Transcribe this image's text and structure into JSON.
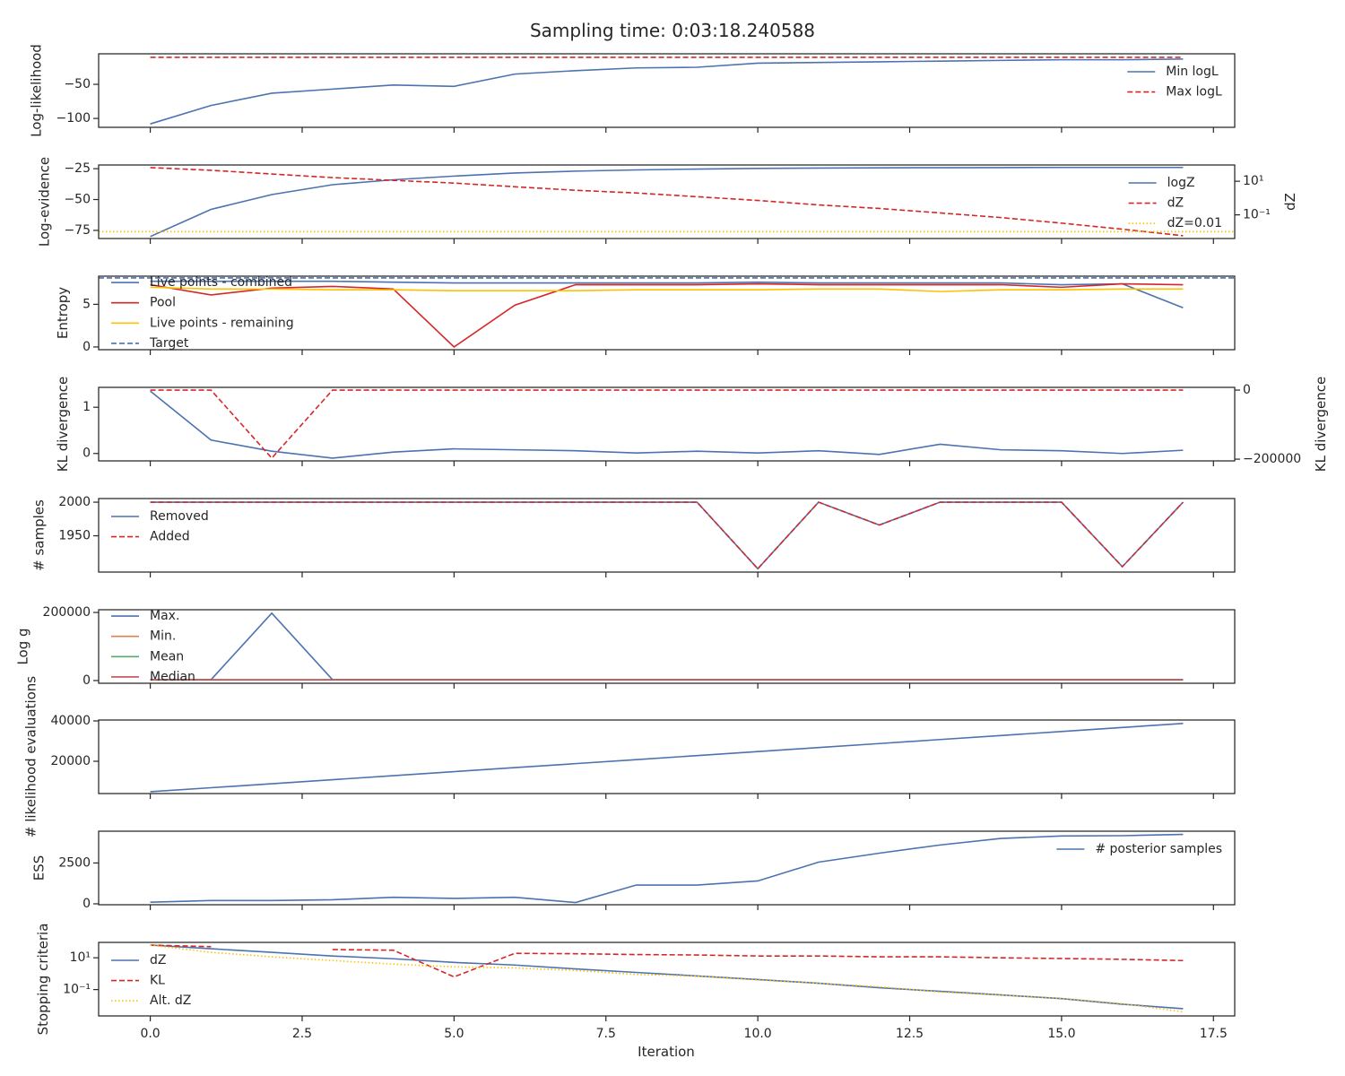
{
  "figure": {
    "title": "Sampling time: 0:03:18.240588",
    "xlabel": "Iteration",
    "x": [
      0,
      1,
      2,
      3,
      4,
      5,
      6,
      7,
      8,
      9,
      10,
      11,
      12,
      13,
      14,
      15,
      16,
      17
    ],
    "xlim": [
      -0.85,
      17.85
    ],
    "xticks": [
      {
        "value": 0,
        "label": "0.0"
      },
      2.5,
      {
        "value": 5,
        "label": "5.0"
      },
      7.5,
      {
        "value": 10,
        "label": "10.0"
      },
      12.5,
      {
        "value": 15,
        "label": "15.0"
      },
      17.5
    ]
  },
  "chart_data": [
    {
      "type": "line",
      "ylabel": "Log-likelihood",
      "ylim": [
        -113,
        -5.3
      ],
      "yticks": [
        {
          "value": -100,
          "label": "−100"
        },
        {
          "value": -50,
          "label": "−50"
        }
      ],
      "legend": "upper right",
      "series": [
        {
          "name": "Min logL",
          "color": "#4c72b0",
          "style": "solid",
          "values": [
            -108,
            -81,
            -63,
            -57,
            -51,
            -53,
            -35,
            -30,
            -26,
            -25,
            -19,
            -18,
            -17,
            -16,
            -15,
            -14,
            -14,
            -13
          ]
        },
        {
          "name": "Max logL",
          "color": "#d62728",
          "style": "dashed",
          "values": [
            -10.5,
            -10.5,
            -10.5,
            -10.5,
            -10.5,
            -10.5,
            -10.5,
            -10.5,
            -10.5,
            -10.5,
            -10.5,
            -10.5,
            -10.5,
            -10.5,
            -10.5,
            -10.5,
            -10.5,
            -10.5
          ]
        }
      ]
    },
    {
      "type": "line",
      "ylabel": "Log-evidence",
      "ylim": [
        -81.6,
        -22
      ],
      "yticks": [
        {
          "value": -75,
          "label": "−75"
        },
        {
          "value": -50,
          "label": "−50"
        },
        {
          "value": -25,
          "label": "−25"
        }
      ],
      "y2label": "dZ",
      "y2scale": "log",
      "y2lim": [
        0.0039,
        93
      ],
      "y2ticks": [
        {
          "value": 0.1,
          "label": "10⁻¹"
        },
        {
          "value": 10,
          "label": "10¹"
        }
      ],
      "legend": "upper right",
      "series": [
        {
          "name": "logZ",
          "color": "#4c72b0",
          "style": "solid",
          "values": [
            -80,
            -58,
            -46,
            -38,
            -34,
            -31,
            -28.5,
            -27,
            -26,
            -25.3,
            -24.8,
            -24.5,
            -24.3,
            -24.2,
            -24.1,
            -24,
            -24,
            -24
          ]
        },
        {
          "name": "dZ",
          "color": "#d62728",
          "style": "dashed",
          "axis": "y2",
          "values": [
            65,
            45,
            27,
            16.5,
            11.3,
            7.8,
            4.7,
            2.9,
            2.0,
            1.2,
            0.72,
            0.39,
            0.24,
            0.13,
            0.069,
            0.032,
            0.014,
            0.0057
          ]
        }
      ],
      "hlines": [
        {
          "name": "dZ=0.01",
          "color": "#ffc000",
          "style": "dotted",
          "axis": "y2",
          "value": 0.01
        }
      ]
    },
    {
      "type": "line",
      "ylabel": "Entropy",
      "ylim": [
        -0.32,
        8.3
      ],
      "yticks": [
        0,
        5
      ],
      "legend": "center left",
      "series": [
        {
          "name": "Live points - combined",
          "color": "#4c72b0",
          "style": "solid",
          "values": [
            7.7,
            7.7,
            7.7,
            7.7,
            7.6,
            7.5,
            7.5,
            7.5,
            7.5,
            7.5,
            7.6,
            7.5,
            7.5,
            7.5,
            7.5,
            7.3,
            7.4,
            4.6
          ]
        },
        {
          "name": "Pool",
          "color": "#d62728",
          "style": "solid",
          "values": [
            7.3,
            6.1,
            6.9,
            7.1,
            6.8,
            0,
            4.9,
            7.3,
            7.3,
            7.3,
            7.4,
            7.3,
            7.3,
            7.3,
            7.3,
            7.0,
            7.4,
            7.3
          ]
        },
        {
          "name": "Live points - remaining",
          "color": "#ffc000",
          "style": "solid",
          "values": [
            7.0,
            6.8,
            6.8,
            6.7,
            6.7,
            6.6,
            6.6,
            6.6,
            6.7,
            6.7,
            6.7,
            6.8,
            6.8,
            6.5,
            6.7,
            6.7,
            6.8,
            6.8
          ]
        }
      ],
      "hlines": [
        {
          "name": "Target",
          "color": "#4c72b0",
          "style": "dashed",
          "value": 8.1
        }
      ]
    },
    {
      "type": "line",
      "ylabel": "KL divergence",
      "ylim": [
        -0.16,
        1.43
      ],
      "yticks": [
        0,
        1
      ],
      "y2label": "KL divergence",
      "y2lim": [
        -205000,
        7900
      ],
      "y2ticks": [
        {
          "value": -200000,
          "label": "−200000"
        },
        0
      ],
      "series": [
        {
          "color": "#4c72b0",
          "style": "solid",
          "values": [
            1.35,
            0.29,
            0.05,
            -0.1,
            0.03,
            0.1,
            0.08,
            0.06,
            0.01,
            0.05,
            0.01,
            0.06,
            -0.02,
            0.2,
            0.08,
            0.06,
            0,
            0.07
          ]
        },
        {
          "color": "#d62728",
          "style": "dashed",
          "axis": "y2",
          "values": [
            0,
            0,
            -197000,
            0,
            0,
            0,
            0,
            0,
            0,
            0,
            0,
            0,
            0,
            0,
            0,
            0,
            0,
            0
          ]
        }
      ]
    },
    {
      "type": "line",
      "ylabel": "# samples",
      "ylim": [
        1896,
        2005.4
      ],
      "yticks": [
        1950,
        2000
      ],
      "legend": "upper left",
      "series": [
        {
          "name": "Removed",
          "color": "#4c72b0",
          "style": "solid",
          "values": [
            2000,
            2000,
            2000,
            2000,
            2000,
            2000,
            2000,
            2000,
            2000,
            2000,
            1901,
            2000,
            1966,
            2000,
            2000,
            2000,
            1904,
            2000
          ]
        },
        {
          "name": "Added",
          "color": "#d62728",
          "style": "dashed",
          "values": [
            2000,
            2000,
            2000,
            2000,
            2000,
            2000,
            2000,
            2000,
            2000,
            2000,
            1901,
            2000,
            1966,
            2000,
            2000,
            2000,
            1904,
            2000
          ]
        }
      ]
    },
    {
      "type": "line",
      "ylabel": "Log g",
      "ylim": [
        -8000,
        208000
      ],
      "yticks": [
        0,
        200000
      ],
      "legend": "center left",
      "series": [
        {
          "name": "Max.",
          "color": "#4c72b0",
          "style": "solid",
          "values": [
            2500,
            2500,
            198000,
            2500,
            2500,
            2500,
            2500,
            2500,
            2500,
            2500,
            2500,
            2500,
            2500,
            2500,
            2500,
            2500,
            2500,
            2500
          ]
        },
        {
          "name": "Min.",
          "color": "#dd8452",
          "style": "solid",
          "values": [
            2000,
            2000,
            2000,
            2000,
            2000,
            2000,
            2000,
            2000,
            2000,
            2000,
            2000,
            2000,
            2000,
            2000,
            2000,
            2000,
            2000,
            2000
          ]
        },
        {
          "name": "Mean",
          "color": "#55a868",
          "style": "solid",
          "values": [
            2000,
            2000,
            2000,
            2000,
            2000,
            2000,
            2000,
            2000,
            2000,
            2000,
            2000,
            2000,
            2000,
            2000,
            2000,
            2000,
            2000,
            2000
          ]
        },
        {
          "name": "Median",
          "color": "#c44e52",
          "style": "solid",
          "values": [
            2000,
            2000,
            2000,
            2000,
            2000,
            2000,
            2000,
            2000,
            2000,
            2000,
            2000,
            2000,
            2000,
            2000,
            2000,
            2000,
            2000,
            2000
          ]
        }
      ]
    },
    {
      "type": "line",
      "ylabel": "# likelihood evaluations",
      "ylim": [
        4000,
        40440
      ],
      "yticks": [
        20000,
        40000
      ],
      "series": [
        {
          "color": "#4c72b0",
          "style": "solid",
          "values": [
            4900,
            6890,
            8880,
            10870,
            12860,
            14850,
            16840,
            18830,
            20820,
            22810,
            24800,
            26790,
            28780,
            30770,
            32760,
            34750,
            36740,
            38730
          ]
        }
      ]
    },
    {
      "type": "line",
      "ylabel": "ESS",
      "ylim": [
        -56,
        4444
      ],
      "yticks": [
        0,
        2500
      ],
      "legend": "upper right",
      "series": [
        {
          "name": "# posterior samples",
          "color": "#4c72b0",
          "style": "solid",
          "values": [
            100,
            200,
            200,
            250,
            400,
            330,
            400,
            80,
            1150,
            1150,
            1400,
            2550,
            3100,
            3600,
            4000,
            4150,
            4170,
            4250
          ]
        }
      ]
    },
    {
      "type": "line",
      "ylabel": "Stopping criteria",
      "yscale": "log",
      "ylim": [
        0.0022,
        93
      ],
      "yticks": [
        {
          "value": 0.1,
          "label": "10⁻¹"
        },
        {
          "value": 10,
          "label": "10¹"
        }
      ],
      "legend": "upper left",
      "series": [
        {
          "name": "dZ",
          "color": "#4c72b0",
          "style": "solid",
          "values": [
            63,
            37,
            22,
            13,
            8.7,
            5.1,
            3.5,
            2.0,
            1.2,
            0.72,
            0.43,
            0.25,
            0.13,
            0.078,
            0.046,
            0.027,
            0.012,
            0.0063
          ]
        },
        {
          "name": "KL",
          "color": "#d62728",
          "style": "dashed",
          "values": [
            63,
            50,
            null,
            33,
            30,
            0.63,
            19,
            18,
            16,
            15,
            13,
            13,
            11.5,
            11.5,
            10,
            9,
            8,
            6.7
          ]
        },
        {
          "name": "Alt. dZ",
          "color": "#ffc000",
          "style": "dotted",
          "values": [
            63,
            22,
            11.5,
            6.7,
            4,
            2.7,
            2.3,
            1.6,
            0.9,
            0.7,
            0.4,
            0.25,
            0.15,
            0.07,
            0.045,
            0.028,
            0.013,
            0.004
          ]
        }
      ]
    }
  ]
}
